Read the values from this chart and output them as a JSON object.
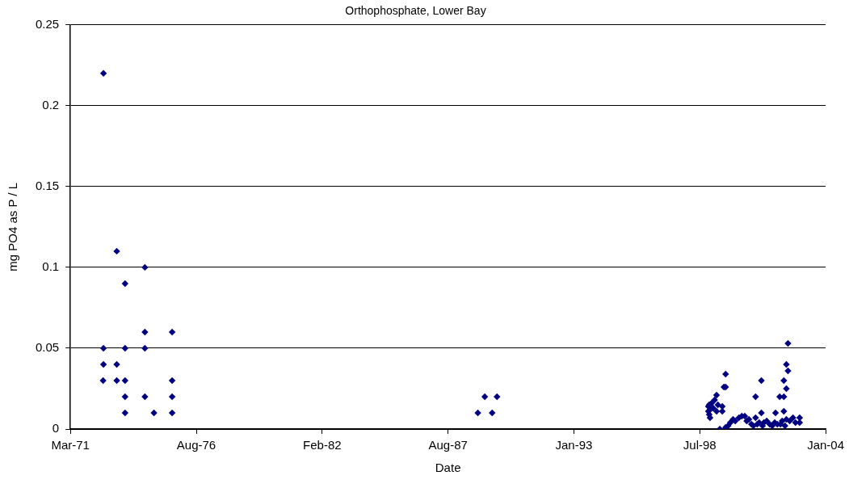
{
  "chart_data": {
    "type": "scatter",
    "title": "Orthophosphate, Lower Bay",
    "xlabel": "Date",
    "ylabel": "mg PO4 as P / L",
    "xlim": [
      "1971-03-01",
      "2004-01-07"
    ],
    "xticks": [
      {
        "value": "1971-03-01",
        "label": "Mar-71"
      },
      {
        "value": "1976-08-21",
        "label": "Aug-76"
      },
      {
        "value": "1982-02-11",
        "label": "Feb-82"
      },
      {
        "value": "1987-08-04",
        "label": "Aug-87"
      },
      {
        "value": "1993-01-24",
        "label": "Jan-93"
      },
      {
        "value": "1998-07-17",
        "label": "Jul-98"
      },
      {
        "value": "2004-01-07",
        "label": "Jan-04"
      }
    ],
    "ylim": [
      0,
      0.25
    ],
    "yticks": [
      0,
      0.05,
      0.1,
      0.15,
      0.2,
      0.25
    ],
    "grid": "y",
    "legend": false,
    "marker": "diamond",
    "series": [
      {
        "color": "#000080",
        "x": [
          "1972-08-07",
          "1972-08-07",
          "1972-08-07",
          "1972-08-01",
          "1973-03-06",
          "1973-03-06",
          "1973-03-06",
          "1973-07-16",
          "1973-07-16",
          "1973-07-16",
          "1973-07-16",
          "1973-07-16",
          "1974-05-27",
          "1974-05-27",
          "1974-05-27",
          "1974-05-27",
          "1974-10-18",
          "1975-08-03",
          "1975-08-03",
          "1975-08-03",
          "1975-08-03",
          "1988-11-20",
          "1989-03-10",
          "1989-07-05",
          "1989-09-20",
          "1998-12-01",
          "1998-12-01",
          "1998-12-14",
          "1998-12-14",
          "1998-12-27",
          "1998-12-27",
          "1999-01-20",
          "1999-02-15",
          "1999-03-10",
          "1999-04-10",
          "1999-04-10",
          "1999-05-01",
          "1999-06-01",
          "1999-07-10",
          "1999-07-10",
          "1999-08-05",
          "1999-09-01",
          "1999-09-01",
          "1999-09-01",
          "1999-10-10",
          "1999-11-15",
          "1999-12-28",
          "2000-02-01",
          "2000-03-30",
          "2000-05-15",
          "2000-07-01",
          "2000-08-01",
          "2000-09-05",
          "2000-10-15",
          "2000-11-15",
          "2000-12-20",
          "2000-12-20",
          "2001-01-15",
          "2001-02-15",
          "2001-03-22",
          "2001-03-22",
          "2001-04-10",
          "2001-05-01",
          "2001-06-15",
          "2001-08-01",
          "2001-09-10",
          "2001-10-20",
          "2001-11-02",
          "2001-12-01",
          "2002-01-07",
          "2002-01-20",
          "2002-02-15",
          "2002-03-14",
          "2002-03-14",
          "2002-03-14",
          "2002-04-01",
          "2002-04-23",
          "2002-04-23",
          "2002-04-23",
          "2002-05-19",
          "2002-05-19",
          "2002-06-15",
          "2002-08-06",
          "2002-09-15",
          "2002-11-20",
          "2002-11-20"
        ],
        "values": [
          0.22,
          0.05,
          0.04,
          0.03,
          0.11,
          0.04,
          0.03,
          0.09,
          0.05,
          0.03,
          0.02,
          0.01,
          0.1,
          0.06,
          0.05,
          0.02,
          0.01,
          0.06,
          0.03,
          0.02,
          0.01,
          0.01,
          0.02,
          0.01,
          0.02,
          0.011,
          0.014,
          0.015,
          0.009,
          0.007,
          0.012,
          0.016,
          0.013,
          0.018,
          0.021,
          0.011,
          0.015,
          0,
          0.014,
          0.011,
          0.026,
          0.026,
          0.034,
          0.001,
          0.002,
          0.004,
          0.006,
          0.005,
          0.007,
          0.008,
          0.008,
          0.005,
          0.006,
          0.003,
          0.002,
          0.02,
          0.007,
          0.003,
          0.004,
          0.03,
          0.01,
          0.002,
          0.004,
          0.005,
          0.003,
          0.002,
          0.004,
          0.01,
          0.003,
          0.02,
          0.003,
          0.005,
          0.03,
          0.02,
          0.011,
          0.002,
          0.04,
          0.025,
          0.006,
          0.053,
          0.036,
          0.005,
          0.007,
          0.004,
          0.007,
          0.004
        ]
      }
    ]
  }
}
